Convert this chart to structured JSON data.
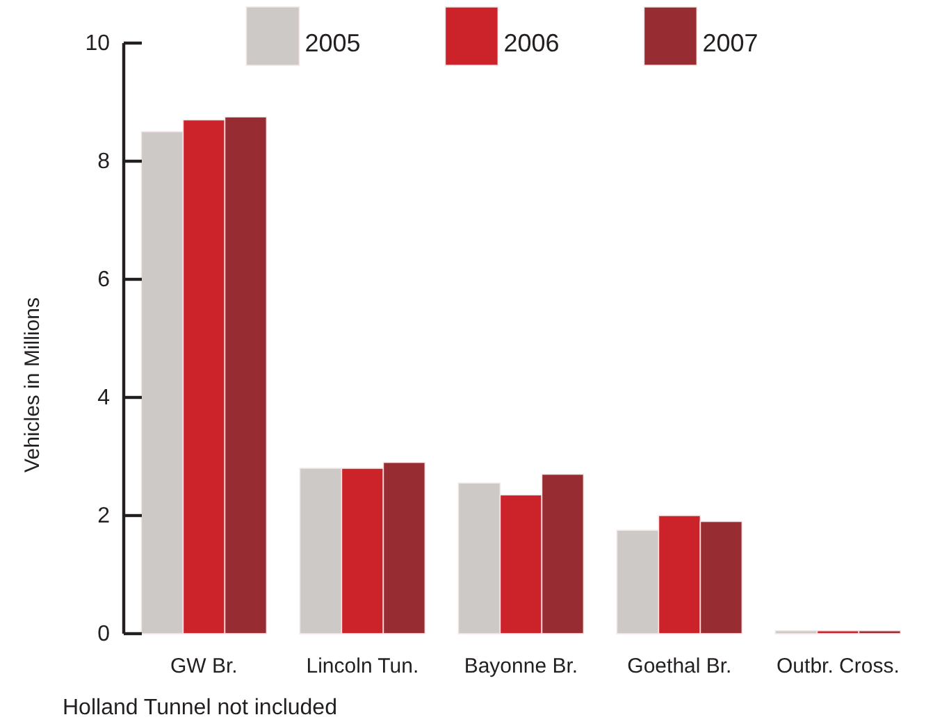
{
  "chart_data": {
    "type": "bar",
    "categories": [
      "GW Br.",
      "Lincoln Tun.",
      "Bayonne Br.",
      "Goethal Br.",
      "Outbr. Cross."
    ],
    "series": [
      {
        "name": "2005",
        "color": "#cdc9c6",
        "values": [
          8.5,
          2.8,
          2.55,
          1.75,
          0.05
        ]
      },
      {
        "name": "2006",
        "color": "#cc232b",
        "values": [
          8.7,
          2.8,
          2.35,
          2.0,
          0.05
        ]
      },
      {
        "name": "2007",
        "color": "#972c33",
        "values": [
          8.75,
          2.9,
          2.7,
          1.9,
          0.05
        ]
      }
    ],
    "ylabel": "Vehicles in Millions",
    "ylim": [
      0,
      10
    ],
    "yticks": [
      0,
      2,
      4,
      6,
      8,
      10
    ],
    "legend": "top",
    "grid": false,
    "annotations": [
      "Holland Tunnel not included"
    ]
  }
}
